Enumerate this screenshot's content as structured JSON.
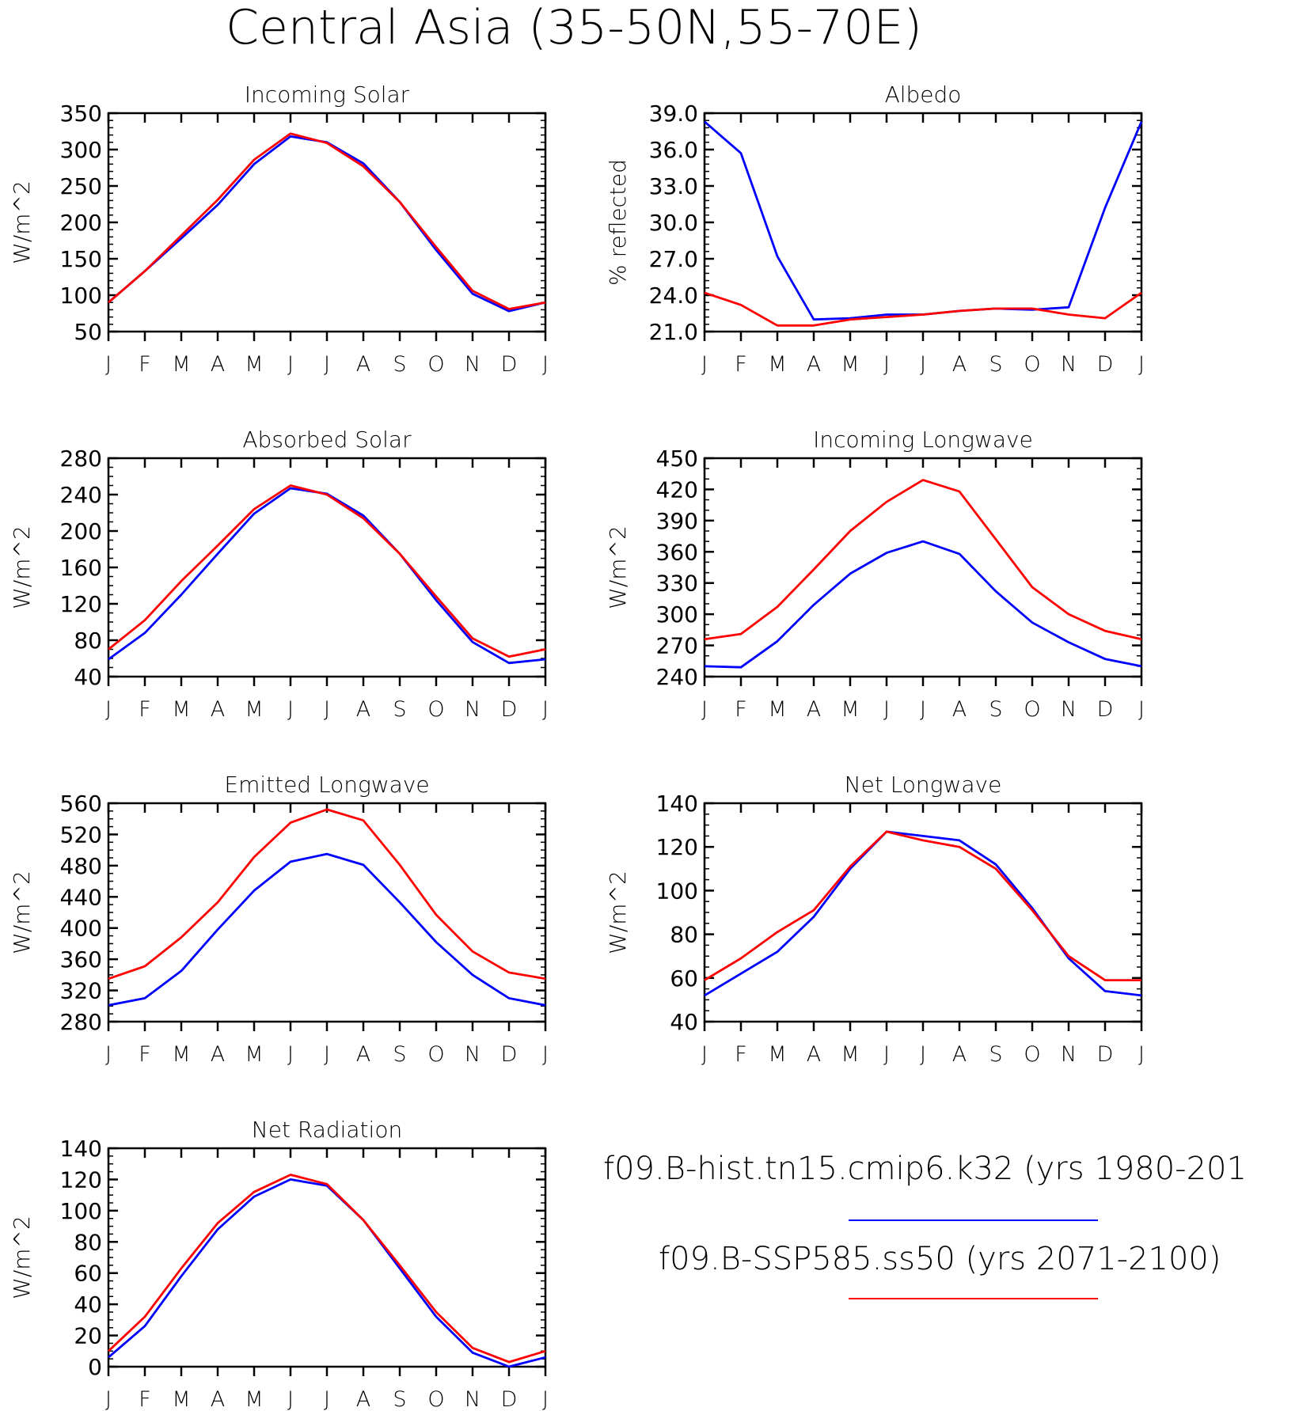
{
  "title": "Central Asia (35-50N,55-70E)",
  "colors": {
    "hist": "#0000ff",
    "ssp": "#ff0000",
    "axis": "#000000"
  },
  "legend": [
    {
      "label": "f09.B-hist.tn15.cmip6.k32 (yrs 1980-201",
      "color": "#0000ff"
    },
    {
      "label": "f09.B-SSP585.ss50 (yrs 2071-2100)",
      "color": "#ff0000"
    }
  ],
  "chart_data": [
    {
      "type": "line",
      "title": "Incoming Solar",
      "ylabel": "W/m^2",
      "categories": [
        "J",
        "F",
        "M",
        "A",
        "M",
        "J",
        "J",
        "A",
        "S",
        "O",
        "N",
        "D",
        "J"
      ],
      "ylim": [
        50,
        350
      ],
      "yticks": [
        "50",
        "100",
        "150",
        "200",
        "250",
        "300",
        "350"
      ],
      "yminor": 4,
      "series": [
        {
          "values": [
            90,
            133,
            178,
            224,
            280,
            318,
            310,
            281,
            228,
            162,
            102,
            78,
            90
          ],
          "color": "#0000ff"
        },
        {
          "values": [
            90,
            133,
            182,
            231,
            286,
            322,
            309,
            277,
            228,
            166,
            106,
            81,
            90
          ],
          "color": "#ff0000"
        }
      ]
    },
    {
      "type": "line",
      "title": "Albedo",
      "ylabel": "% reflected",
      "categories": [
        "J",
        "F",
        "M",
        "A",
        "M",
        "J",
        "J",
        "A",
        "S",
        "O",
        "N",
        "D",
        "J"
      ],
      "ylim": [
        21,
        39
      ],
      "yticks": [
        "21.0",
        "24.0",
        "27.0",
        "30.0",
        "33.0",
        "36.0",
        "39.0"
      ],
      "yminor": 4,
      "series": [
        {
          "values": [
            38.3,
            35.7,
            27.2,
            22.0,
            22.1,
            22.4,
            22.4,
            22.7,
            22.9,
            22.8,
            23.0,
            31.2,
            38.3
          ],
          "color": "#0000ff"
        },
        {
          "values": [
            24.2,
            23.2,
            21.5,
            21.5,
            22.0,
            22.2,
            22.4,
            22.7,
            22.9,
            22.9,
            22.4,
            22.1,
            24.2
          ],
          "color": "#ff0000"
        }
      ]
    },
    {
      "type": "line",
      "title": "Absorbed Solar",
      "ylabel": "W/m^2",
      "categories": [
        "J",
        "F",
        "M",
        "A",
        "M",
        "J",
        "J",
        "A",
        "S",
        "O",
        "N",
        "D",
        "J"
      ],
      "ylim": [
        40,
        280
      ],
      "yticks": [
        "40",
        "80",
        "120",
        "160",
        "200",
        "240",
        "280"
      ],
      "yminor": 3,
      "series": [
        {
          "values": [
            59,
            88,
            130,
            175,
            219,
            247,
            241,
            217,
            175,
            124,
            78,
            55,
            59
          ],
          "color": "#0000ff"
        },
        {
          "values": [
            70,
            102,
            145,
            184,
            224,
            250,
            240,
            214,
            175,
            128,
            82,
            62,
            70
          ],
          "color": "#ff0000"
        }
      ]
    },
    {
      "type": "line",
      "title": "Incoming Longwave",
      "ylabel": "W/m^2",
      "categories": [
        "J",
        "F",
        "M",
        "A",
        "M",
        "J",
        "J",
        "A",
        "S",
        "O",
        "N",
        "D",
        "J"
      ],
      "ylim": [
        240,
        450
      ],
      "yticks": [
        "240",
        "270",
        "300",
        "330",
        "360",
        "390",
        "420",
        "450"
      ],
      "yminor": 2,
      "series": [
        {
          "values": [
            250,
            249,
            274,
            309,
            339,
            359,
            370,
            358,
            322,
            292,
            273,
            257,
            250
          ],
          "color": "#0000ff"
        },
        {
          "values": [
            276,
            281,
            307,
            343,
            380,
            408,
            429,
            418,
            372,
            326,
            300,
            284,
            276
          ],
          "color": "#ff0000"
        }
      ]
    },
    {
      "type": "line",
      "title": "Emitted Longwave",
      "ylabel": "W/m^2",
      "categories": [
        "J",
        "F",
        "M",
        "A",
        "M",
        "J",
        "J",
        "A",
        "S",
        "O",
        "N",
        "D",
        "J"
      ],
      "ylim": [
        280,
        560
      ],
      "yticks": [
        "280",
        "320",
        "360",
        "400",
        "440",
        "480",
        "520",
        "560"
      ],
      "yminor": 3,
      "series": [
        {
          "values": [
            301,
            310,
            345,
            398,
            448,
            485,
            495,
            481,
            433,
            382,
            340,
            310,
            301
          ],
          "color": "#0000ff"
        },
        {
          "values": [
            335,
            351,
            388,
            433,
            491,
            535,
            552,
            538,
            481,
            417,
            370,
            343,
            335
          ],
          "color": "#ff0000"
        }
      ]
    },
    {
      "type": "line",
      "title": "Net Longwave",
      "ylabel": "W/m^2",
      "categories": [
        "J",
        "F",
        "M",
        "A",
        "M",
        "J",
        "J",
        "A",
        "S",
        "O",
        "N",
        "D",
        "J"
      ],
      "ylim": [
        40,
        140
      ],
      "yticks": [
        "40",
        "60",
        "80",
        "100",
        "120",
        "140"
      ],
      "yminor": 3,
      "series": [
        {
          "values": [
            52,
            62,
            72,
            88,
            110,
            127,
            125,
            123,
            112,
            92,
            69,
            54,
            52
          ],
          "color": "#0000ff"
        },
        {
          "values": [
            59,
            69,
            81,
            91,
            111,
            127,
            123,
            120,
            110,
            91,
            70,
            59,
            59
          ],
          "color": "#ff0000"
        }
      ]
    },
    {
      "type": "line",
      "title": "Net Radiation",
      "ylabel": "W/m^2",
      "categories": [
        "J",
        "F",
        "M",
        "A",
        "M",
        "J",
        "J",
        "A",
        "S",
        "O",
        "N",
        "D",
        "J"
      ],
      "ylim": [
        0,
        140
      ],
      "yticks": [
        "0",
        "20",
        "40",
        "60",
        "80",
        "100",
        "120",
        "140"
      ],
      "yminor": 3,
      "series": [
        {
          "values": [
            6,
            26,
            58,
            88,
            109,
            120,
            116,
            94,
            63,
            32,
            9,
            0,
            6
          ],
          "color": "#0000ff"
        },
        {
          "values": [
            10,
            32,
            63,
            92,
            112,
            123,
            117,
            94,
            65,
            35,
            12,
            3,
            10
          ],
          "color": "#ff0000"
        }
      ]
    }
  ]
}
